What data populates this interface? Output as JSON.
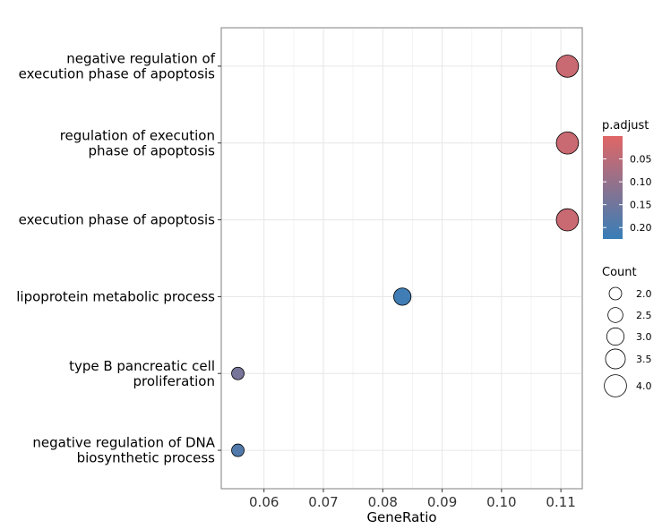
{
  "chart_data": {
    "type": "scatter",
    "xlabel": "GeneRatio",
    "xlim": [
      0.0528,
      0.1136
    ],
    "x_ticks": [
      "0.06",
      "0.07",
      "0.08",
      "0.09",
      "0.10",
      "0.11"
    ],
    "x_tick_values": [
      0.06,
      0.07,
      0.08,
      0.09,
      0.1,
      0.11
    ],
    "grid": true,
    "categories": [
      "negative regulation of DNA\nbiosynthetic process",
      "type B pancreatic cell\nproliferation",
      "lipoprotein metabolic process",
      "execution phase of apoptosis",
      "regulation of execution\nphase of apoptosis",
      "negative regulation of\nexecution phase of apoptosis"
    ],
    "points": [
      {
        "x": 0.0556,
        "count": 2,
        "p_adjust": 0.19
      },
      {
        "x": 0.0556,
        "count": 2,
        "p_adjust": 0.14
      },
      {
        "x": 0.0833,
        "count": 3,
        "p_adjust": 0.215
      },
      {
        "x": 0.1111,
        "count": 4,
        "p_adjust": 0.03
      },
      {
        "x": 0.1111,
        "count": 4,
        "p_adjust": 0.03
      },
      {
        "x": 0.1111,
        "count": 4,
        "p_adjust": 0.03
      }
    ],
    "color_legend": {
      "title": "p.adjust",
      "labels": [
        "0.05",
        "0.10",
        "0.15",
        "0.20"
      ],
      "values": [
        0.05,
        0.1,
        0.15,
        0.2
      ],
      "range": [
        0.0,
        0.225
      ],
      "low_color": "#e06666",
      "high_color": "#377eb8"
    },
    "size_legend": {
      "title": "Count",
      "labels": [
        "2.0",
        "2.5",
        "3.0",
        "3.5",
        "4.0"
      ],
      "values": [
        2.0,
        2.5,
        3.0,
        3.5,
        4.0
      ]
    },
    "legend_position": "right"
  }
}
